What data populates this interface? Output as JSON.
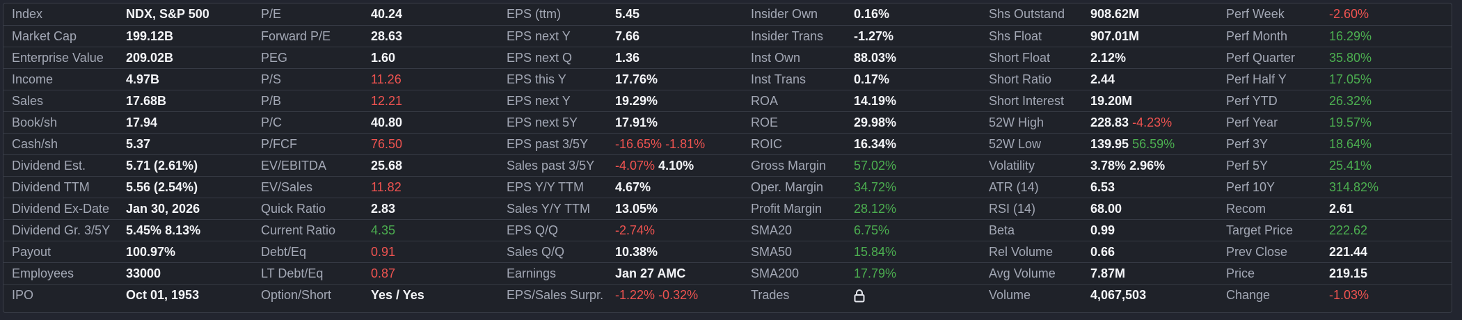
{
  "colors": {
    "background": "#1f2229",
    "border": "#363a44",
    "label": "#a3a8b5",
    "value": "#f4f5f8",
    "negative": "#ef5350",
    "positive": "#4caf50"
  },
  "rows": [
    [
      {
        "label": "Index",
        "value": [
          {
            "text": "NDX, S&P 500",
            "tone": "white"
          }
        ]
      },
      {
        "label": "P/E",
        "value": [
          {
            "text": "40.24",
            "tone": "white"
          }
        ]
      },
      {
        "label": "EPS (ttm)",
        "value": [
          {
            "text": "5.45",
            "tone": "white"
          }
        ]
      },
      {
        "label": "Insider Own",
        "value": [
          {
            "text": "0.16%",
            "tone": "white"
          }
        ]
      },
      {
        "label": "Shs Outstand",
        "value": [
          {
            "text": "908.62M",
            "tone": "white"
          }
        ]
      },
      {
        "label": "Perf Week",
        "value": [
          {
            "text": "-2.60%",
            "tone": "red"
          }
        ]
      }
    ],
    [
      {
        "label": "Market Cap",
        "value": [
          {
            "text": "199.12B",
            "tone": "white"
          }
        ]
      },
      {
        "label": "Forward P/E",
        "value": [
          {
            "text": "28.63",
            "tone": "white"
          }
        ]
      },
      {
        "label": "EPS next Y",
        "value": [
          {
            "text": "7.66",
            "tone": "white"
          }
        ]
      },
      {
        "label": "Insider Trans",
        "value": [
          {
            "text": "-1.27%",
            "tone": "white"
          }
        ]
      },
      {
        "label": "Shs Float",
        "value": [
          {
            "text": "907.01M",
            "tone": "white"
          }
        ]
      },
      {
        "label": "Perf Month",
        "value": [
          {
            "text": "16.29%",
            "tone": "green"
          }
        ]
      }
    ],
    [
      {
        "label": "Enterprise Value",
        "value": [
          {
            "text": "209.02B",
            "tone": "white"
          }
        ]
      },
      {
        "label": "PEG",
        "value": [
          {
            "text": "1.60",
            "tone": "white"
          }
        ]
      },
      {
        "label": "EPS next Q",
        "value": [
          {
            "text": "1.36",
            "tone": "white"
          }
        ]
      },
      {
        "label": "Inst Own",
        "value": [
          {
            "text": "88.03%",
            "tone": "white"
          }
        ]
      },
      {
        "label": "Short Float",
        "value": [
          {
            "text": "2.12%",
            "tone": "white"
          }
        ]
      },
      {
        "label": "Perf Quarter",
        "value": [
          {
            "text": "35.80%",
            "tone": "green"
          }
        ]
      }
    ],
    [
      {
        "label": "Income",
        "value": [
          {
            "text": "4.97B",
            "tone": "white"
          }
        ]
      },
      {
        "label": "P/S",
        "value": [
          {
            "text": "11.26",
            "tone": "red"
          }
        ]
      },
      {
        "label": "EPS this Y",
        "value": [
          {
            "text": "17.76%",
            "tone": "white"
          }
        ]
      },
      {
        "label": "Inst Trans",
        "value": [
          {
            "text": "0.17%",
            "tone": "white"
          }
        ]
      },
      {
        "label": "Short Ratio",
        "value": [
          {
            "text": "2.44",
            "tone": "white"
          }
        ]
      },
      {
        "label": "Perf Half Y",
        "value": [
          {
            "text": "17.05%",
            "tone": "green"
          }
        ]
      }
    ],
    [
      {
        "label": "Sales",
        "value": [
          {
            "text": "17.68B",
            "tone": "white"
          }
        ]
      },
      {
        "label": "P/B",
        "value": [
          {
            "text": "12.21",
            "tone": "red"
          }
        ]
      },
      {
        "label": "EPS next Y",
        "value": [
          {
            "text": "19.29%",
            "tone": "white"
          }
        ]
      },
      {
        "label": "ROA",
        "value": [
          {
            "text": "14.19%",
            "tone": "white"
          }
        ]
      },
      {
        "label": "Short Interest",
        "value": [
          {
            "text": "19.20M",
            "tone": "white"
          }
        ]
      },
      {
        "label": "Perf YTD",
        "value": [
          {
            "text": "26.32%",
            "tone": "green"
          }
        ]
      }
    ],
    [
      {
        "label": "Book/sh",
        "value": [
          {
            "text": "17.94",
            "tone": "white"
          }
        ]
      },
      {
        "label": "P/C",
        "value": [
          {
            "text": "40.80",
            "tone": "white"
          }
        ]
      },
      {
        "label": "EPS next 5Y",
        "value": [
          {
            "text": "17.91%",
            "tone": "white"
          }
        ]
      },
      {
        "label": "ROE",
        "value": [
          {
            "text": "29.98%",
            "tone": "white"
          }
        ]
      },
      {
        "label": "52W High",
        "value": [
          {
            "text": "228.83",
            "tone": "white"
          },
          {
            "text": "-4.23%",
            "tone": "red"
          }
        ]
      },
      {
        "label": "Perf Year",
        "value": [
          {
            "text": "19.57%",
            "tone": "green"
          }
        ]
      }
    ],
    [
      {
        "label": "Cash/sh",
        "value": [
          {
            "text": "5.37",
            "tone": "white"
          }
        ]
      },
      {
        "label": "P/FCF",
        "value": [
          {
            "text": "76.50",
            "tone": "red"
          }
        ]
      },
      {
        "label": "EPS past 3/5Y",
        "value": [
          {
            "text": "-16.65%",
            "tone": "red"
          },
          {
            "text": "-1.81%",
            "tone": "red"
          }
        ]
      },
      {
        "label": "ROIC",
        "value": [
          {
            "text": "16.34%",
            "tone": "white"
          }
        ]
      },
      {
        "label": "52W Low",
        "value": [
          {
            "text": "139.95",
            "tone": "white"
          },
          {
            "text": "56.59%",
            "tone": "green"
          }
        ]
      },
      {
        "label": "Perf 3Y",
        "value": [
          {
            "text": "18.64%",
            "tone": "green"
          }
        ]
      }
    ],
    [
      {
        "label": "Dividend Est.",
        "value": [
          {
            "text": "5.71 (2.61%)",
            "tone": "white"
          }
        ]
      },
      {
        "label": "EV/EBITDA",
        "value": [
          {
            "text": "25.68",
            "tone": "white"
          }
        ]
      },
      {
        "label": "Sales past 3/5Y",
        "value": [
          {
            "text": "-4.07%",
            "tone": "red"
          },
          {
            "text": "4.10%",
            "tone": "white"
          }
        ]
      },
      {
        "label": "Gross Margin",
        "value": [
          {
            "text": "57.02%",
            "tone": "green"
          }
        ]
      },
      {
        "label": "Volatility",
        "value": [
          {
            "text": "3.78%",
            "tone": "white"
          },
          {
            "text": "2.96%",
            "tone": "white"
          }
        ]
      },
      {
        "label": "Perf 5Y",
        "value": [
          {
            "text": "25.41%",
            "tone": "green"
          }
        ]
      }
    ],
    [
      {
        "label": "Dividend TTM",
        "value": [
          {
            "text": "5.56 (2.54%)",
            "tone": "white"
          }
        ]
      },
      {
        "label": "EV/Sales",
        "value": [
          {
            "text": "11.82",
            "tone": "red"
          }
        ]
      },
      {
        "label": "EPS Y/Y TTM",
        "value": [
          {
            "text": "4.67%",
            "tone": "white"
          }
        ]
      },
      {
        "label": "Oper. Margin",
        "value": [
          {
            "text": "34.72%",
            "tone": "green"
          }
        ]
      },
      {
        "label": "ATR (14)",
        "value": [
          {
            "text": "6.53",
            "tone": "white"
          }
        ]
      },
      {
        "label": "Perf 10Y",
        "value": [
          {
            "text": "314.82%",
            "tone": "green"
          }
        ]
      }
    ],
    [
      {
        "label": "Dividend Ex-Date",
        "value": [
          {
            "text": "Jan 30, 2026",
            "tone": "white"
          }
        ]
      },
      {
        "label": "Quick Ratio",
        "value": [
          {
            "text": "2.83",
            "tone": "white"
          }
        ]
      },
      {
        "label": "Sales Y/Y TTM",
        "value": [
          {
            "text": "13.05%",
            "tone": "white"
          }
        ]
      },
      {
        "label": "Profit Margin",
        "value": [
          {
            "text": "28.12%",
            "tone": "green"
          }
        ]
      },
      {
        "label": "RSI (14)",
        "value": [
          {
            "text": "68.00",
            "tone": "white"
          }
        ]
      },
      {
        "label": "Recom",
        "value": [
          {
            "text": "2.61",
            "tone": "white"
          }
        ]
      }
    ],
    [
      {
        "label": "Dividend Gr. 3/5Y",
        "value": [
          {
            "text": "5.45%",
            "tone": "white"
          },
          {
            "text": "8.13%",
            "tone": "white"
          }
        ]
      },
      {
        "label": "Current Ratio",
        "value": [
          {
            "text": "4.35",
            "tone": "green"
          }
        ]
      },
      {
        "label": "EPS Q/Q",
        "value": [
          {
            "text": "-2.74%",
            "tone": "red"
          }
        ]
      },
      {
        "label": "SMA20",
        "value": [
          {
            "text": "6.75%",
            "tone": "green"
          }
        ]
      },
      {
        "label": "Beta",
        "value": [
          {
            "text": "0.99",
            "tone": "white"
          }
        ]
      },
      {
        "label": "Target Price",
        "value": [
          {
            "text": "222.62",
            "tone": "green"
          }
        ]
      }
    ],
    [
      {
        "label": "Payout",
        "value": [
          {
            "text": "100.97%",
            "tone": "white"
          }
        ]
      },
      {
        "label": "Debt/Eq",
        "value": [
          {
            "text": "0.91",
            "tone": "red"
          }
        ]
      },
      {
        "label": "Sales Q/Q",
        "value": [
          {
            "text": "10.38%",
            "tone": "white"
          }
        ]
      },
      {
        "label": "SMA50",
        "value": [
          {
            "text": "15.84%",
            "tone": "green"
          }
        ]
      },
      {
        "label": "Rel Volume",
        "value": [
          {
            "text": "0.66",
            "tone": "white"
          }
        ]
      },
      {
        "label": "Prev Close",
        "value": [
          {
            "text": "221.44",
            "tone": "white"
          }
        ]
      }
    ],
    [
      {
        "label": "Employees",
        "value": [
          {
            "text": "33000",
            "tone": "white"
          }
        ]
      },
      {
        "label": "LT Debt/Eq",
        "value": [
          {
            "text": "0.87",
            "tone": "red"
          }
        ]
      },
      {
        "label": "Earnings",
        "value": [
          {
            "text": "Jan 27 AMC",
            "tone": "white"
          }
        ]
      },
      {
        "label": "SMA200",
        "value": [
          {
            "text": "17.79%",
            "tone": "green"
          }
        ]
      },
      {
        "label": "Avg Volume",
        "value": [
          {
            "text": "7.87M",
            "tone": "white"
          }
        ]
      },
      {
        "label": "Price",
        "value": [
          {
            "text": "219.15",
            "tone": "white"
          }
        ]
      }
    ],
    [
      {
        "label": "IPO",
        "value": [
          {
            "text": "Oct 01, 1953",
            "tone": "white"
          }
        ]
      },
      {
        "label": "Option/Short",
        "value": [
          {
            "text": "Yes / Yes",
            "tone": "white"
          }
        ]
      },
      {
        "label": "EPS/Sales Surpr.",
        "value": [
          {
            "text": "-1.22%",
            "tone": "red"
          },
          {
            "text": "-0.32%",
            "tone": "red"
          }
        ]
      },
      {
        "label": "Trades",
        "value": [],
        "icon": "lock-icon"
      },
      {
        "label": "Volume",
        "value": [
          {
            "text": "4,067,503",
            "tone": "white"
          }
        ]
      },
      {
        "label": "Change",
        "value": [
          {
            "text": "-1.03%",
            "tone": "red"
          }
        ]
      }
    ]
  ]
}
